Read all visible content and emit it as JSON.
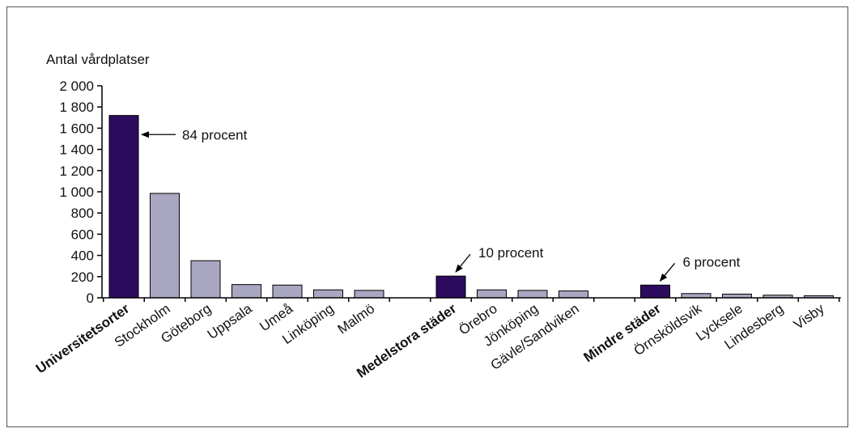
{
  "chart_data": {
    "type": "bar",
    "title": "",
    "ylabel": "Antal vårdplatser",
    "xlabel": "",
    "ylim": [
      0,
      2000
    ],
    "yticks": [
      0,
      200,
      400,
      600,
      800,
      1000,
      1200,
      1400,
      1600,
      1800,
      2000
    ],
    "ytick_labels": [
      "0",
      "200",
      "400",
      "600",
      "800",
      "1 000",
      "1 200",
      "1 400",
      "1 600",
      "1 800",
      "2 000"
    ],
    "grid": false,
    "colors": {
      "group": "#2d0b5e",
      "city": "#a8a6c0",
      "outline": "#000000"
    },
    "categories": [
      {
        "label": "Universitetsorter",
        "value": 1720,
        "group": true
      },
      {
        "label": "Stockholm",
        "value": 985,
        "group": false
      },
      {
        "label": "Göteborg",
        "value": 350,
        "group": false
      },
      {
        "label": "Uppsala",
        "value": 125,
        "group": false
      },
      {
        "label": "Umeå",
        "value": 120,
        "group": false
      },
      {
        "label": "Linköping",
        "value": 75,
        "group": false
      },
      {
        "label": "Malmö",
        "value": 70,
        "group": false
      },
      {
        "label": "",
        "value": null,
        "group": false
      },
      {
        "label": "Medelstora städer",
        "value": 205,
        "group": true
      },
      {
        "label": "Örebro",
        "value": 75,
        "group": false
      },
      {
        "label": "Jönköping",
        "value": 70,
        "group": false
      },
      {
        "label": "Gävle/Sandviken",
        "value": 65,
        "group": false
      },
      {
        "label": "",
        "value": null,
        "group": false
      },
      {
        "label": "Mindre städer",
        "value": 120,
        "group": true
      },
      {
        "label": "Örnsköldsvik",
        "value": 40,
        "group": false
      },
      {
        "label": "Lycksele",
        "value": 35,
        "group": false
      },
      {
        "label": "Lindesberg",
        "value": 25,
        "group": false
      },
      {
        "label": "Visby",
        "value": 20,
        "group": false
      }
    ],
    "annotations": [
      {
        "text": "84 procent",
        "category_index": 0
      },
      {
        "text": "10 procent",
        "category_index": 8
      },
      {
        "text": "6 procent",
        "category_index": 13
      }
    ]
  }
}
